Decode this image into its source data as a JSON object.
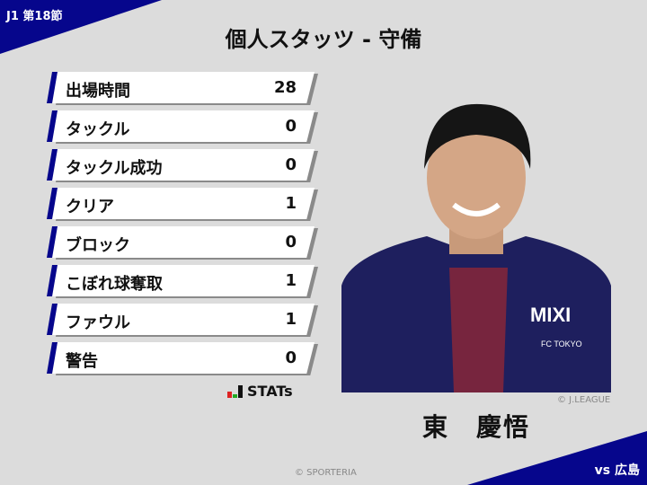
{
  "header": {
    "round": "J1 第18節",
    "title": "個人スタッツ - 守備",
    "opponent": "vs 広島"
  },
  "stats": [
    {
      "label": "出場時間",
      "value": "28"
    },
    {
      "label": "タックル",
      "value": "0"
    },
    {
      "label": "タックル成功",
      "value": "0"
    },
    {
      "label": "クリア",
      "value": "1"
    },
    {
      "label": "ブロック",
      "value": "0"
    },
    {
      "label": "こぼれ球奪取",
      "value": "1"
    },
    {
      "label": "ファウル",
      "value": "1"
    },
    {
      "label": "警告",
      "value": "0"
    }
  ],
  "brand": {
    "stats_logo": "STATs"
  },
  "player": {
    "name": "東　慶悟",
    "photo_credit": "© J.LEAGUE",
    "shirt_sponsor": "MIXI",
    "club": "FC TOKYO"
  },
  "footer": {
    "copyright": "© SPORTERIA"
  },
  "colors": {
    "accent": "#06068c",
    "background": "#dcdcdc"
  }
}
